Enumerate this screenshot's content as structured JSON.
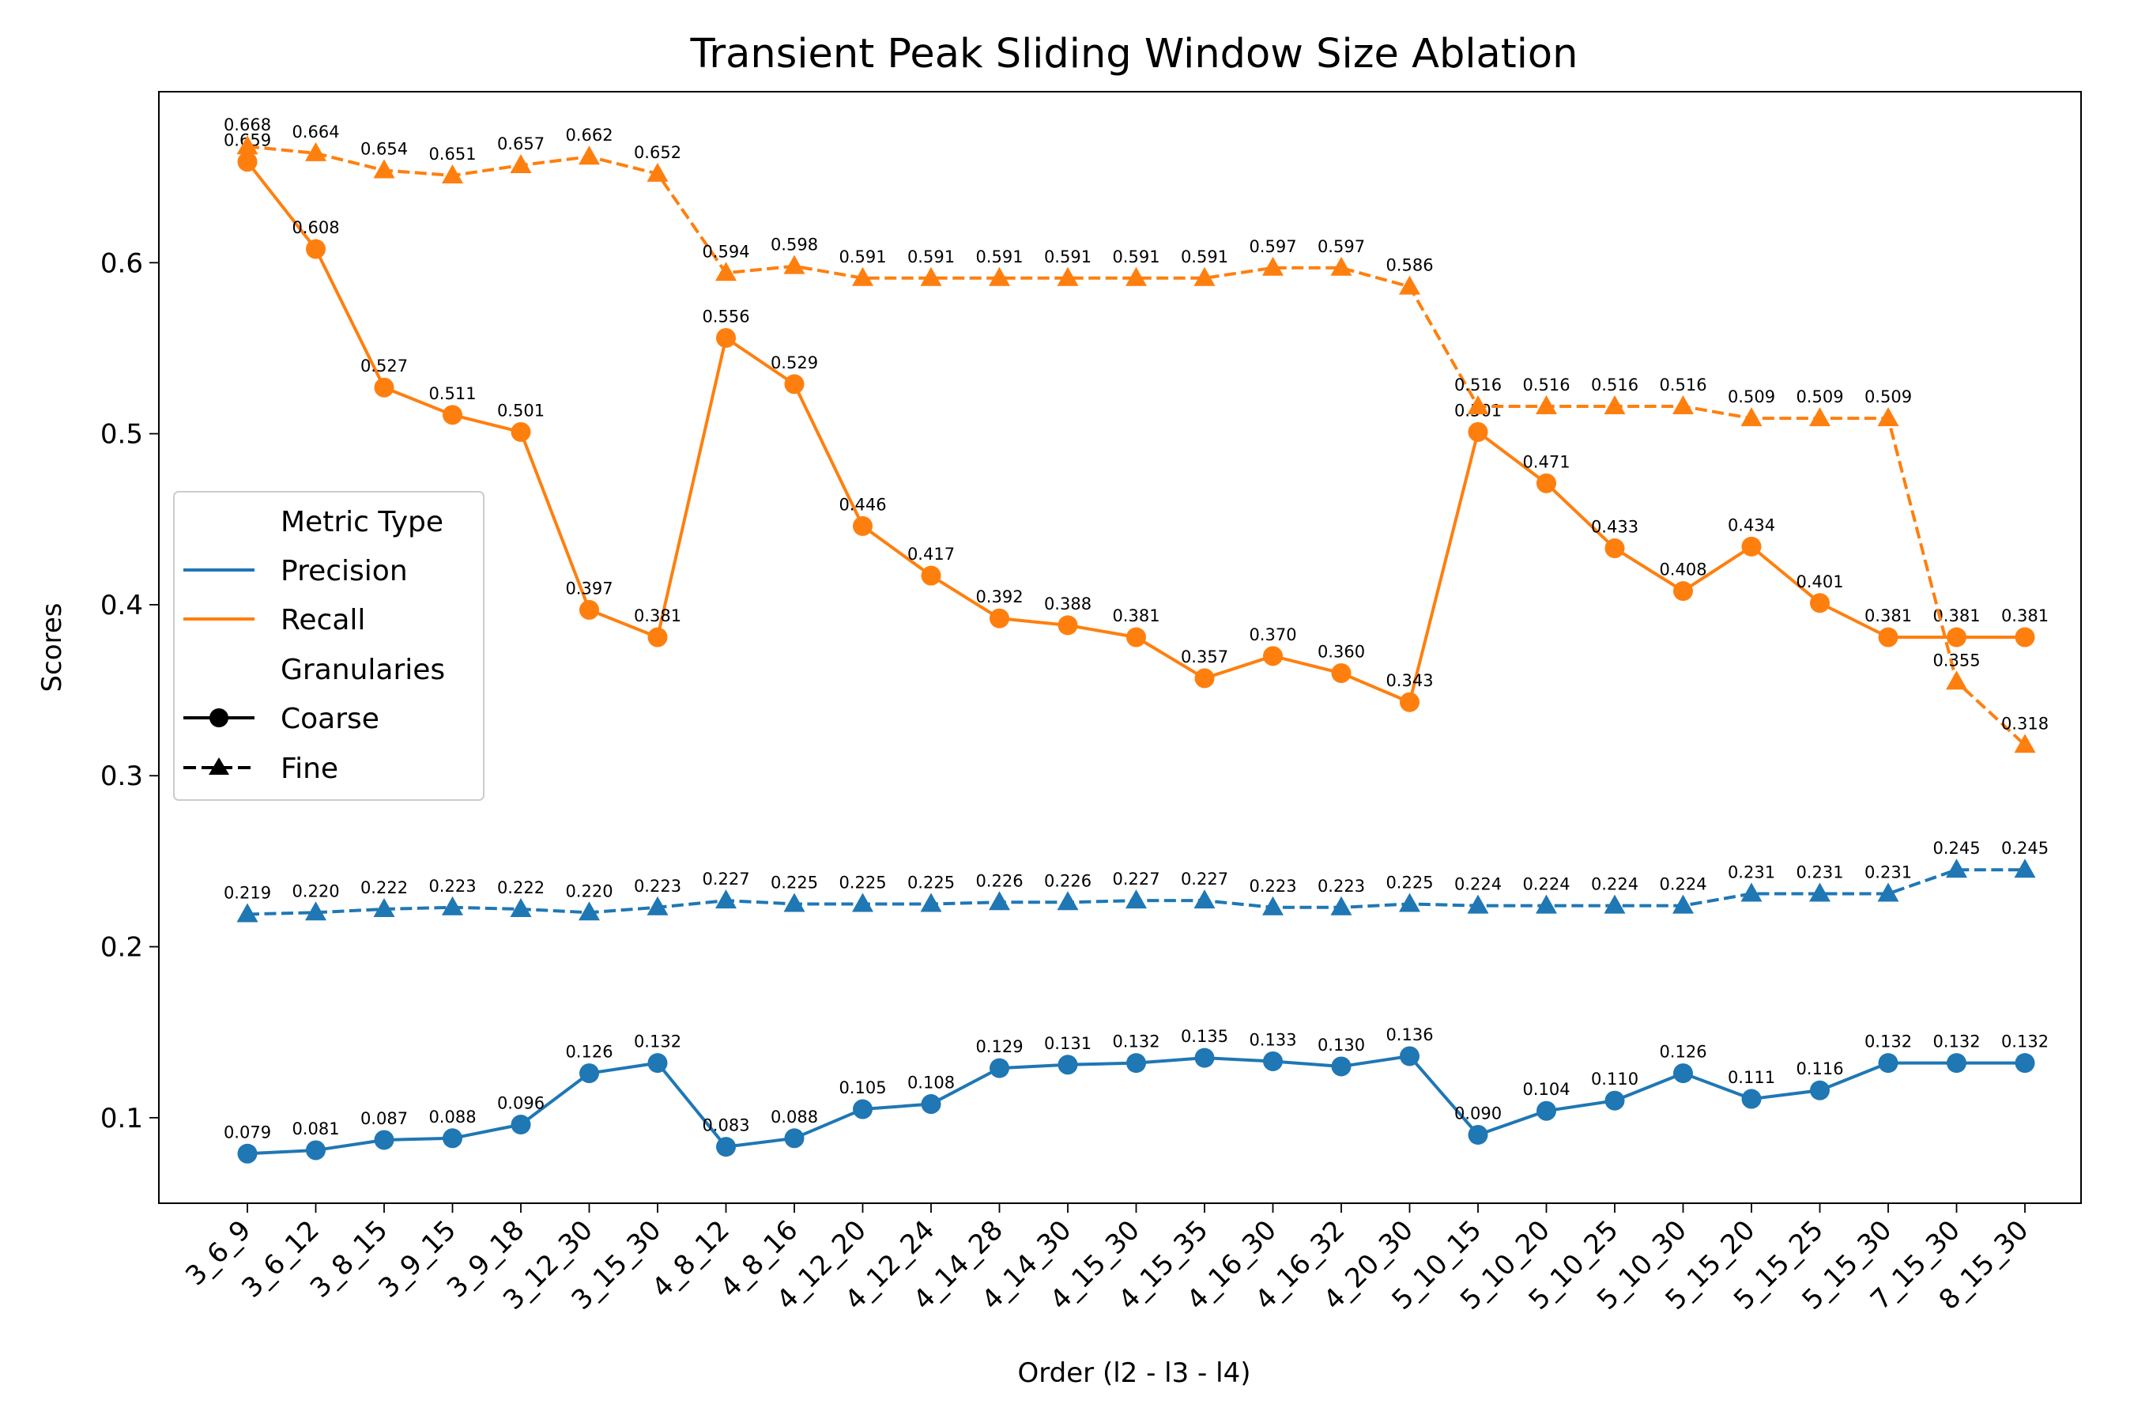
{
  "chart_data": {
    "type": "line",
    "title": "Transient Peak Sliding Window Size Ablation",
    "xlabel": "Order (l2 - l3 - l4)",
    "ylabel": "Scores",
    "ylim": [
      0.05,
      0.7
    ],
    "yticks": [
      0.1,
      0.2,
      0.3,
      0.4,
      0.5,
      0.6
    ],
    "ytick_labels": [
      "0.1",
      "0.2",
      "0.3",
      "0.4",
      "0.5",
      "0.6"
    ],
    "grid": false,
    "legend_position": "center-left",
    "categories": [
      "3_6_9",
      "3_6_12",
      "3_8_15",
      "3_9_15",
      "3_9_18",
      "3_12_30",
      "3_15_30",
      "4_8_12",
      "4_8_16",
      "4_12_20",
      "4_12_24",
      "4_14_28",
      "4_14_30",
      "4_15_30",
      "4_15_35",
      "4_16_30",
      "4_16_32",
      "4_20_30",
      "5_10_15",
      "5_10_20",
      "5_10_25",
      "5_10_30",
      "5_15_20",
      "5_15_25",
      "5_15_30",
      "7_15_30",
      "8_15_30"
    ],
    "series": [
      {
        "name": "Precision Coarse",
        "metric": "Precision",
        "granularity": "Coarse",
        "color": "#1f77b4",
        "dash": "solid",
        "marker": "circle",
        "values": [
          0.079,
          0.081,
          0.087,
          0.088,
          0.096,
          0.126,
          0.132,
          0.083,
          0.088,
          0.105,
          0.108,
          0.129,
          0.131,
          0.132,
          0.135,
          0.133,
          0.13,
          0.136,
          0.09,
          0.104,
          0.11,
          0.126,
          0.111,
          0.116,
          0.132,
          0.132,
          0.132
        ]
      },
      {
        "name": "Precision Fine",
        "metric": "Precision",
        "granularity": "Fine",
        "color": "#1f77b4",
        "dash": "dashed",
        "marker": "triangle",
        "values": [
          0.219,
          0.22,
          0.222,
          0.223,
          0.222,
          0.22,
          0.223,
          0.227,
          0.225,
          0.225,
          0.225,
          0.226,
          0.226,
          0.227,
          0.227,
          0.223,
          0.223,
          0.225,
          0.224,
          0.224,
          0.224,
          0.224,
          0.231,
          0.231,
          0.231,
          0.245,
          0.245
        ]
      },
      {
        "name": "Recall Coarse",
        "metric": "Recall",
        "granularity": "Coarse",
        "color": "#ff7f0e",
        "dash": "solid",
        "marker": "circle",
        "values": [
          0.659,
          0.608,
          0.527,
          0.511,
          0.501,
          0.397,
          0.381,
          0.556,
          0.529,
          0.446,
          0.417,
          0.392,
          0.388,
          0.381,
          0.357,
          0.37,
          0.36,
          0.343,
          0.501,
          0.471,
          0.433,
          0.408,
          0.434,
          0.401,
          0.381,
          0.381,
          0.381
        ]
      },
      {
        "name": "Recall Fine",
        "metric": "Recall",
        "granularity": "Fine",
        "color": "#ff7f0e",
        "dash": "dashed",
        "marker": "triangle",
        "values": [
          0.668,
          0.664,
          0.654,
          0.651,
          0.657,
          0.662,
          0.652,
          0.594,
          0.598,
          0.591,
          0.591,
          0.591,
          0.591,
          0.591,
          0.591,
          0.597,
          0.597,
          0.586,
          0.516,
          0.516,
          0.516,
          0.516,
          0.509,
          0.509,
          0.509,
          0.355,
          0.318
        ]
      }
    ],
    "legend": {
      "metric_header": "Metric Type",
      "metric_items": [
        {
          "label": "Precision",
          "color": "#1f77b4"
        },
        {
          "label": "Recall",
          "color": "#ff7f0e"
        }
      ],
      "granularity_header": "Granularies",
      "granularity_items": [
        {
          "label": "Coarse",
          "marker": "circle",
          "dash": "solid"
        },
        {
          "label": "Fine",
          "marker": "triangle",
          "dash": "dashed"
        }
      ]
    }
  }
}
